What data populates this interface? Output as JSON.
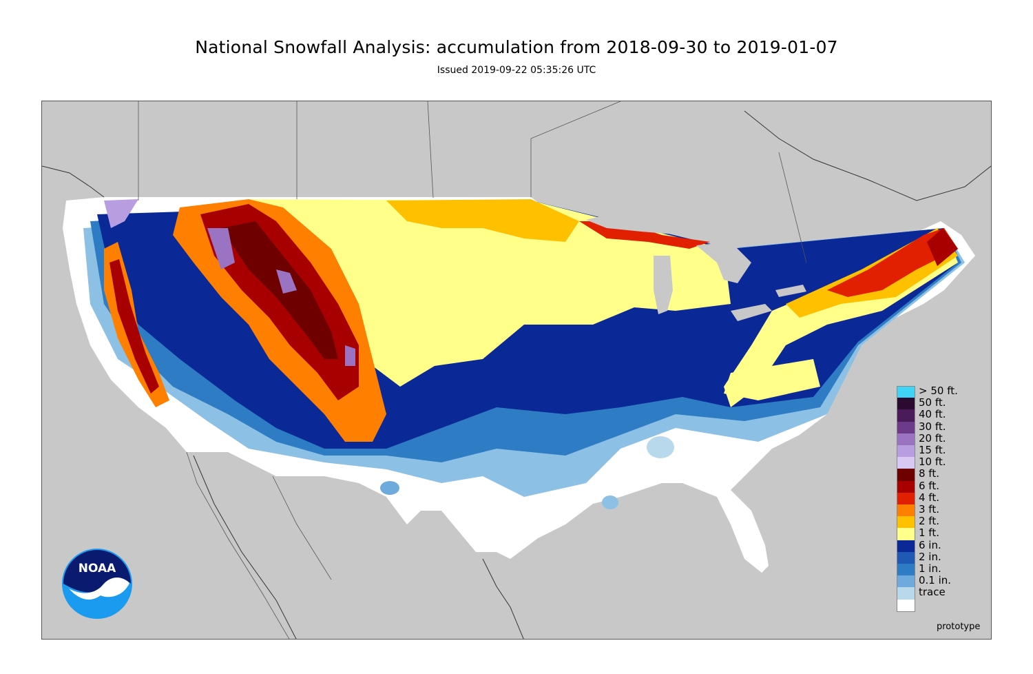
{
  "title": "National Snowfall Analysis: accumulation from 2018-09-30 to 2019-01-07",
  "subtitle": "Issued 2019-09-22 05:35:26 UTC",
  "watermark": "prototype",
  "logo": {
    "text": "NOAA",
    "icon": "noaa-logo"
  },
  "legend": [
    {
      "label": "> 50 ft.",
      "color": "#3fd4f5"
    },
    {
      "label": "50 ft.",
      "color": "#2a0a2e"
    },
    {
      "label": "40 ft.",
      "color": "#4a1a5a"
    },
    {
      "label": "30 ft.",
      "color": "#6e3b8a"
    },
    {
      "label": "20 ft.",
      "color": "#9a74c2"
    },
    {
      "label": "15 ft.",
      "color": "#b89ee0"
    },
    {
      "label": "10 ft.",
      "color": "#d8c8f4"
    },
    {
      "label": "8 ft.",
      "color": "#6e0000"
    },
    {
      "label": "6 ft.",
      "color": "#a80000"
    },
    {
      "label": "4 ft.",
      "color": "#e02000"
    },
    {
      "label": "3 ft.",
      "color": "#ff8000"
    },
    {
      "label": "2 ft.",
      "color": "#ffc000"
    },
    {
      "label": "1 ft.",
      "color": "#ffff8a"
    },
    {
      "label": "6 in.",
      "color": "#0a2896"
    },
    {
      "label": "2 in.",
      "color": "#1e5ab4"
    },
    {
      "label": "1 in.",
      "color": "#2e7cc4"
    },
    {
      "label": "0.1 in.",
      "color": "#6eaadc"
    },
    {
      "label": "trace",
      "color": "#b8d8ec"
    },
    {
      "label": "",
      "color": "#ffffff"
    }
  ]
}
